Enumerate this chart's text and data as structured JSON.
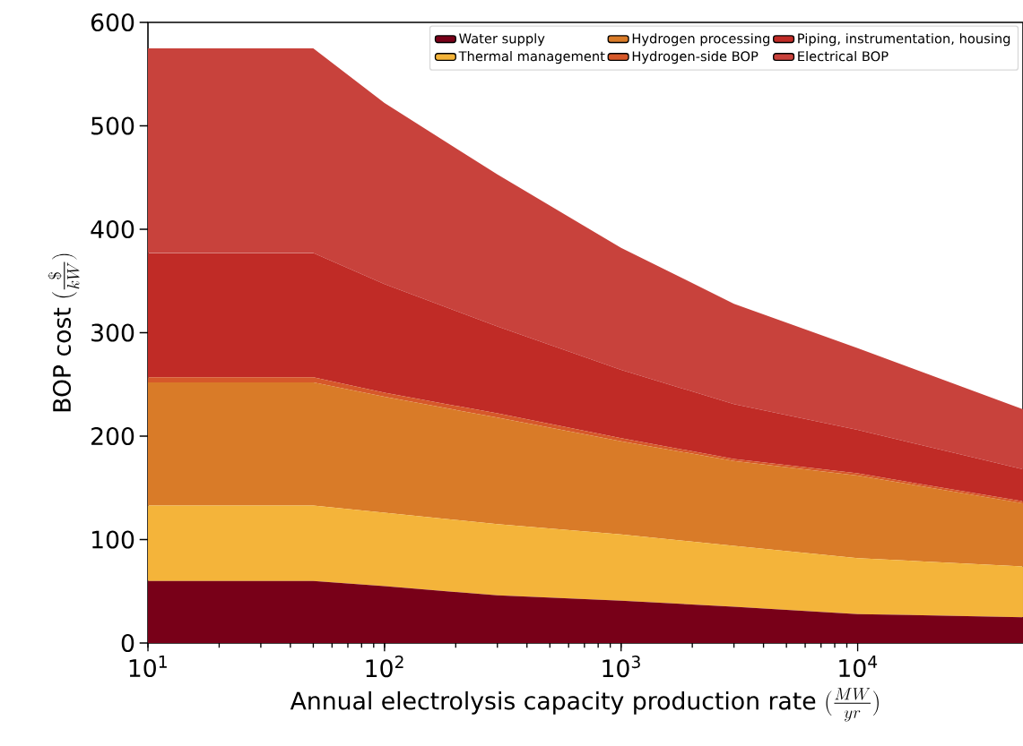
{
  "chart_data": {
    "type": "area",
    "stacked": true,
    "log": "x",
    "legend": "top right",
    "xlabel": "\\text{Annual electrolysis capacity production rate }(\\frac{MW}{yr})",
    "ylabel": "\\text{BOP cost }(\\frac{\\$}{kW})",
    "x": [
      10,
      50,
      100,
      300,
      1000,
      3000,
      10000,
      50000
    ],
    "xlim": [
      10,
      50000
    ],
    "xticks": [
      {
        "value": 10,
        "label": "10$^{1}$"
      },
      {
        "value": 100,
        "label": "10$^{2}$"
      },
      {
        "value": 1000,
        "label": "10$^{3}$"
      },
      {
        "value": 10000,
        "label": "10$^{4}$"
      }
    ],
    "ylim": [
      0,
      600
    ],
    "yticks": [
      0,
      100,
      200,
      300,
      400,
      500,
      600
    ],
    "series": [
      {
        "name": "Water supply",
        "color": "#780018",
        "values": [
          60,
          60,
          55,
          46,
          41,
          35,
          28,
          25
        ]
      },
      {
        "name": "Thermal management",
        "color": "#f4b43a",
        "values": [
          73,
          73,
          71,
          69,
          64,
          59,
          54,
          49
        ]
      },
      {
        "name": "Hydrogen processing",
        "color": "#d97b28",
        "values": [
          119,
          119,
          112,
          103,
          90,
          82,
          80,
          61
        ]
      },
      {
        "name": "Hydrogen-side BOP",
        "color": "#d6582a",
        "values": [
          5,
          5,
          4,
          4,
          3,
          2,
          2,
          2
        ]
      },
      {
        "name": "Piping, instrumentation, housing",
        "color": "#c02b26",
        "values": [
          120,
          120,
          105,
          84,
          66,
          53,
          42,
          31
        ]
      },
      {
        "name": "Electrical BOP",
        "color": "#c8423c",
        "values": [
          198,
          198,
          175,
          147,
          118,
          97,
          79,
          58
        ]
      }
    ]
  }
}
